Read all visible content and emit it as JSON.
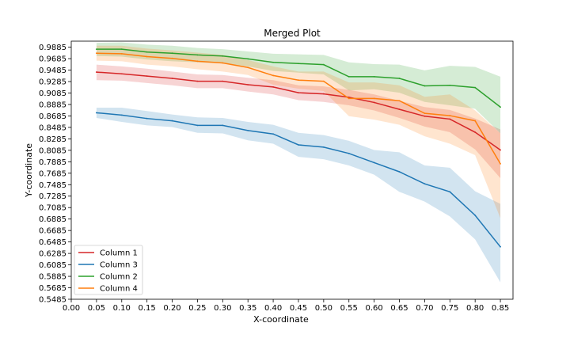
{
  "chart_data": {
    "type": "line",
    "title": "Merged Plot",
    "xlabel": "X-coordinate",
    "ylabel": "Y-coordinate",
    "xlim": [
      0.0,
      0.875
    ],
    "ylim": [
      0.5485,
      0.999
    ],
    "x_ticks": [
      "0.00",
      "0.05",
      "0.10",
      "0.15",
      "0.20",
      "0.25",
      "0.30",
      "0.35",
      "0.40",
      "0.45",
      "0.50",
      "0.55",
      "0.60",
      "0.65",
      "0.70",
      "0.75",
      "0.80",
      "0.85"
    ],
    "y_ticks": [
      "0.5485",
      "0.5685",
      "0.5885",
      "0.6085",
      "0.6285",
      "0.6485",
      "0.6685",
      "0.6885",
      "0.7085",
      "0.7285",
      "0.7485",
      "0.7685",
      "0.7885",
      "0.8085",
      "0.8285",
      "0.8485",
      "0.8685",
      "0.8885",
      "0.9085",
      "0.9285",
      "0.9485",
      "0.9685",
      "0.9885"
    ],
    "x": [
      0.05,
      0.1,
      0.15,
      0.2,
      0.25,
      0.3,
      0.35,
      0.4,
      0.45,
      0.5,
      0.55,
      0.6,
      0.65,
      0.7,
      0.75,
      0.8,
      0.85
    ],
    "legend_position": "lower-left",
    "grid": false,
    "series": [
      {
        "name": "Column 1",
        "color": "#d62728",
        "values": [
          0.945,
          0.942,
          0.938,
          0.934,
          0.929,
          0.929,
          0.923,
          0.919,
          0.909,
          0.907,
          0.901,
          0.892,
          0.88,
          0.868,
          0.863,
          0.84,
          0.809
        ],
        "upper": [
          0.958,
          0.955,
          0.951,
          0.946,
          0.941,
          0.94,
          0.935,
          0.931,
          0.922,
          0.92,
          0.914,
          0.906,
          0.895,
          0.884,
          0.879,
          0.864,
          0.845
        ],
        "lower": [
          0.931,
          0.93,
          0.926,
          0.922,
          0.917,
          0.917,
          0.911,
          0.906,
          0.896,
          0.893,
          0.887,
          0.878,
          0.865,
          0.85,
          0.84,
          0.81,
          0.76
        ]
      },
      {
        "name": "Column 3",
        "color": "#1f77b4",
        "values": [
          0.874,
          0.87,
          0.864,
          0.86,
          0.852,
          0.852,
          0.843,
          0.837,
          0.818,
          0.814,
          0.803,
          0.787,
          0.771,
          0.75,
          0.736,
          0.695,
          0.64
        ],
        "upper": [
          0.883,
          0.883,
          0.877,
          0.871,
          0.866,
          0.865,
          0.858,
          0.853,
          0.839,
          0.835,
          0.825,
          0.809,
          0.805,
          0.782,
          0.778,
          0.737,
          0.715
        ],
        "lower": [
          0.865,
          0.858,
          0.852,
          0.849,
          0.839,
          0.838,
          0.826,
          0.82,
          0.797,
          0.793,
          0.782,
          0.766,
          0.736,
          0.719,
          0.693,
          0.653,
          0.578
        ]
      },
      {
        "name": "Column 2",
        "color": "#2ca02c",
        "values": [
          0.985,
          0.985,
          0.98,
          0.978,
          0.975,
          0.973,
          0.968,
          0.962,
          0.96,
          0.958,
          0.937,
          0.937,
          0.934,
          0.921,
          0.922,
          0.918,
          0.884
        ],
        "upper": [
          0.996,
          0.997,
          0.993,
          0.991,
          0.987,
          0.985,
          0.981,
          0.977,
          0.976,
          0.975,
          0.962,
          0.959,
          0.958,
          0.948,
          0.956,
          0.954,
          0.937
        ],
        "lower": [
          0.973,
          0.972,
          0.967,
          0.964,
          0.962,
          0.96,
          0.955,
          0.947,
          0.944,
          0.941,
          0.913,
          0.915,
          0.909,
          0.893,
          0.887,
          0.881,
          0.838
        ]
      },
      {
        "name": "Column 4",
        "color": "#ff7f0e",
        "values": [
          0.978,
          0.977,
          0.972,
          0.969,
          0.964,
          0.961,
          0.953,
          0.939,
          0.931,
          0.929,
          0.899,
          0.899,
          0.895,
          0.873,
          0.869,
          0.86,
          0.785
        ],
        "upper": [
          0.991,
          0.991,
          0.986,
          0.983,
          0.979,
          0.975,
          0.966,
          0.955,
          0.946,
          0.946,
          0.927,
          0.927,
          0.922,
          0.902,
          0.906,
          0.878,
          0.838
        ],
        "lower": [
          0.965,
          0.964,
          0.958,
          0.955,
          0.95,
          0.946,
          0.94,
          0.923,
          0.916,
          0.912,
          0.868,
          0.862,
          0.853,
          0.833,
          0.82,
          0.8,
          0.69
        ]
      }
    ]
  }
}
